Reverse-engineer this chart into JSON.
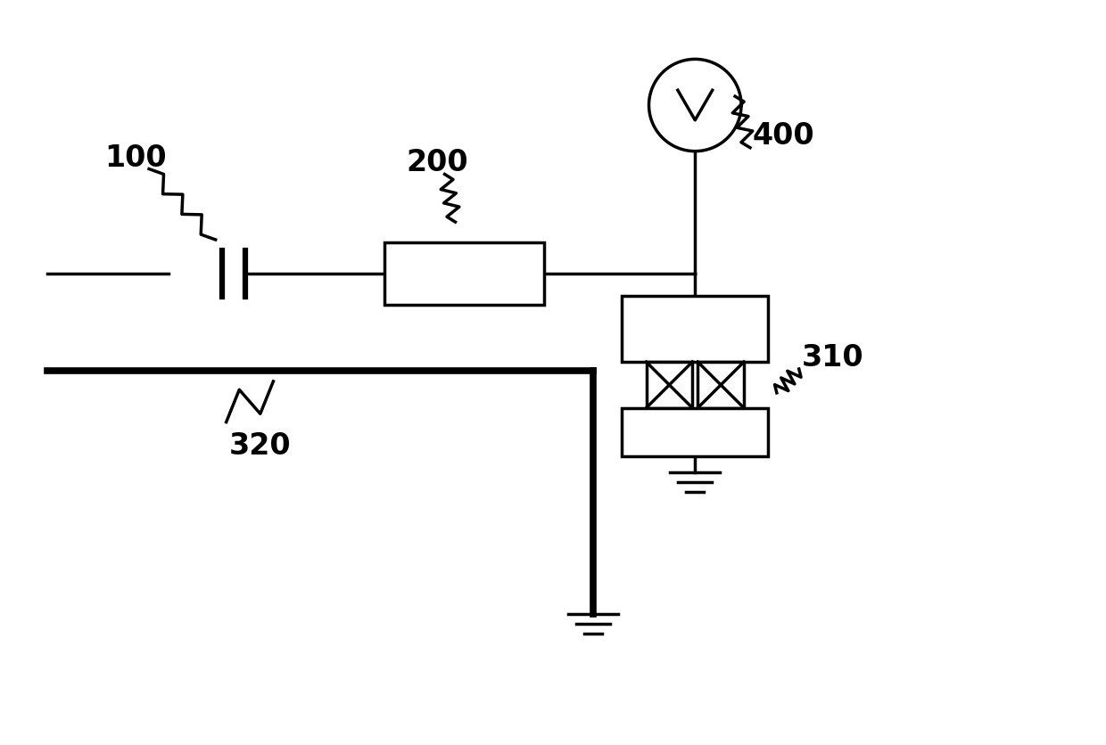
{
  "bg_color": "#ffffff",
  "line_color": "#000000",
  "line_width": 2.5,
  "label_fontsize": 24
}
